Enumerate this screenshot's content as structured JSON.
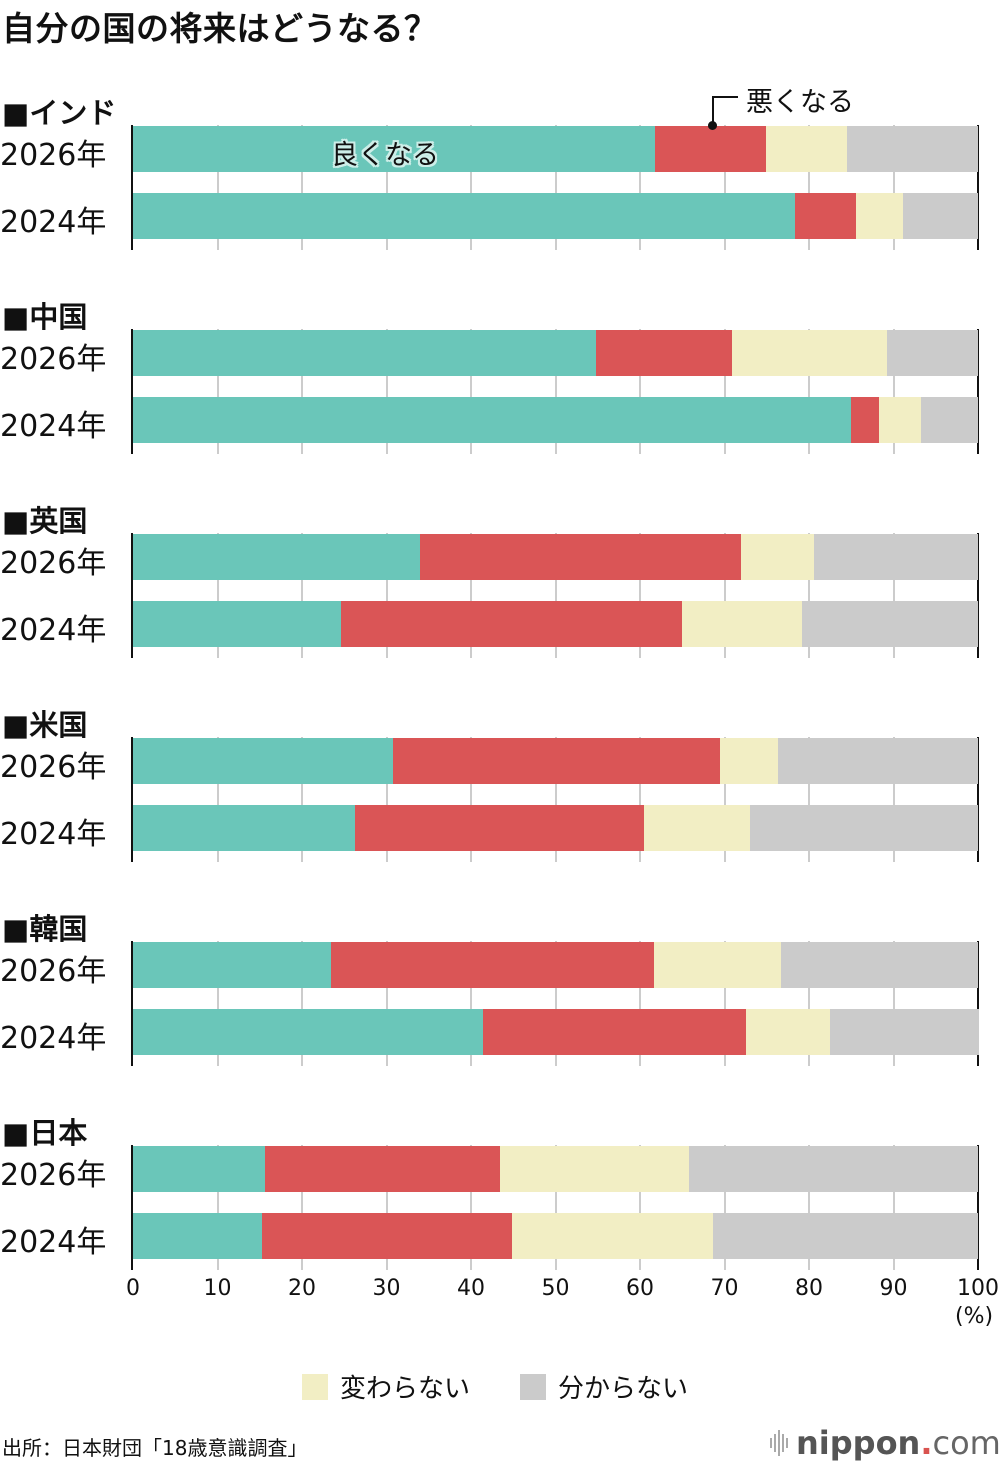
{
  "title": "自分の国の将来はどうなる？",
  "colors": {
    "good": "#6ac6b9",
    "bad": "#da5556",
    "same": "#f2eec4",
    "unknown": "#cbcbcb"
  },
  "annotations": {
    "good_label": "良くなる",
    "bad_label": "悪くなる"
  },
  "legend": {
    "same_label": "変わらない",
    "unknown_label": "分からない"
  },
  "axis": {
    "ticks": [
      "0",
      "10",
      "20",
      "30",
      "40",
      "50",
      "60",
      "70",
      "80",
      "90",
      "100"
    ],
    "unit": "(%)"
  },
  "groups": [
    {
      "header": "■インド",
      "rows": [
        {
          "year": "2026年"
        },
        {
          "year": "2024年"
        }
      ]
    },
    {
      "header": "■中国",
      "rows": [
        {
          "year": "2026年"
        },
        {
          "year": "2024年"
        }
      ]
    },
    {
      "header": "■英国",
      "rows": [
        {
          "year": "2026年"
        },
        {
          "year": "2024年"
        }
      ]
    },
    {
      "header": "■米国",
      "rows": [
        {
          "year": "2026年"
        },
        {
          "year": "2024年"
        }
      ]
    },
    {
      "header": "■韓国",
      "rows": [
        {
          "year": "2026年"
        },
        {
          "year": "2024年"
        }
      ]
    },
    {
      "header": "■日本",
      "rows": [
        {
          "year": "2026年"
        },
        {
          "year": "2024年"
        }
      ]
    }
  ],
  "source": "出所：日本財団「18歳意識調査」",
  "brand": {
    "name": "nippon",
    "dot": ".",
    "suffix": "com"
  },
  "chart_data": {
    "type": "bar",
    "orientation": "horizontal",
    "stacked": true,
    "title": "自分の国の将来はどうなる？",
    "xlabel": "(%)",
    "ylabel": "",
    "xlim": [
      0,
      100
    ],
    "x_ticks": [
      0,
      10,
      20,
      30,
      40,
      50,
      60,
      70,
      80,
      90,
      100
    ],
    "grid": true,
    "legend_position": "bottom",
    "categories": [
      "インド 2026年",
      "インド 2024年",
      "中国 2026年",
      "中国 2024年",
      "英国 2026年",
      "英国 2024年",
      "米国 2026年",
      "米国 2024年",
      "韓国 2026年",
      "韓国 2024年",
      "日本 2026年",
      "日本 2024年"
    ],
    "series": [
      {
        "name": "良くなる",
        "color": "#6ac6b9",
        "values": [
          61.8,
          78.3,
          54.8,
          85.0,
          34.0,
          24.6,
          30.8,
          26.3,
          23.4,
          41.4,
          15.6,
          15.3
        ]
      },
      {
        "name": "悪くなる",
        "color": "#da5556",
        "values": [
          13.1,
          7.3,
          16.1,
          3.3,
          38.0,
          40.4,
          38.7,
          34.2,
          38.2,
          31.2,
          27.8,
          29.6
        ]
      },
      {
        "name": "変わらない",
        "color": "#f2eec4",
        "values": [
          9.6,
          5.5,
          18.3,
          4.9,
          8.6,
          14.2,
          6.8,
          12.5,
          15.1,
          9.9,
          22.4,
          23.7
        ]
      },
      {
        "name": "分からない",
        "color": "#cbcbcb",
        "values": [
          15.5,
          8.9,
          10.8,
          6.8,
          19.4,
          20.8,
          23.7,
          27.0,
          23.3,
          17.5,
          34.2,
          31.4
        ]
      }
    ],
    "source": "出所：日本財団「18歳意識調査」"
  }
}
